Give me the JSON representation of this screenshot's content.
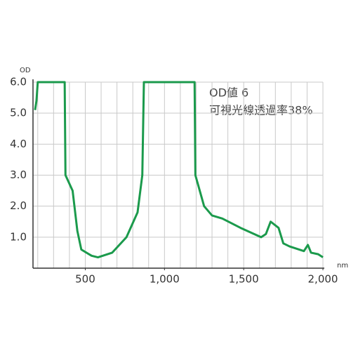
{
  "chart_data": {
    "type": "line",
    "y_label": "OD",
    "x_label": "nm",
    "annotations": [
      "OD値 6",
      "可視光線透過率38%"
    ],
    "xlim": [
      170,
      2000
    ],
    "ylim": [
      0,
      6
    ],
    "xticks": [
      500,
      {
        "value": 1000,
        "label": "1,000"
      },
      {
        "value": 1500,
        "label": "1,500"
      },
      {
        "value": 2000,
        "label": "2,000"
      }
    ],
    "xgrid": [
      200,
      300,
      400,
      500,
      600,
      700,
      800,
      900,
      1000,
      1100,
      1200,
      1300,
      1400,
      1500,
      1600,
      1700,
      1800,
      1900,
      2000
    ],
    "yticks": [
      {
        "value": 1,
        "label": "1.0"
      },
      {
        "value": 2,
        "label": "2.0"
      },
      {
        "value": 3,
        "label": "3.0"
      },
      {
        "value": 4,
        "label": "4.0"
      },
      {
        "value": 5,
        "label": "5.0"
      },
      {
        "value": 6,
        "label": "6.0"
      }
    ],
    "grid": true,
    "series": [
      {
        "color": "#1b9a4c",
        "x": [
          183,
          192,
          200,
          370,
          375,
          420,
          450,
          475,
          540,
          580,
          670,
          760,
          830,
          860,
          870,
          1190,
          1195,
          1250,
          1300,
          1365,
          1480,
          1610,
          1640,
          1670,
          1720,
          1750,
          1790,
          1880,
          1905,
          1925,
          1970,
          2000
        ],
        "values": [
          5.1,
          5.4,
          6.0,
          6.0,
          3.0,
          2.5,
          1.2,
          0.6,
          0.4,
          0.35,
          0.5,
          1.0,
          1.8,
          3.0,
          6.0,
          6.0,
          3.0,
          2.0,
          1.7,
          1.6,
          1.3,
          1.0,
          1.1,
          1.5,
          1.3,
          0.8,
          0.7,
          0.55,
          0.75,
          0.5,
          0.45,
          0.35
        ]
      }
    ]
  }
}
